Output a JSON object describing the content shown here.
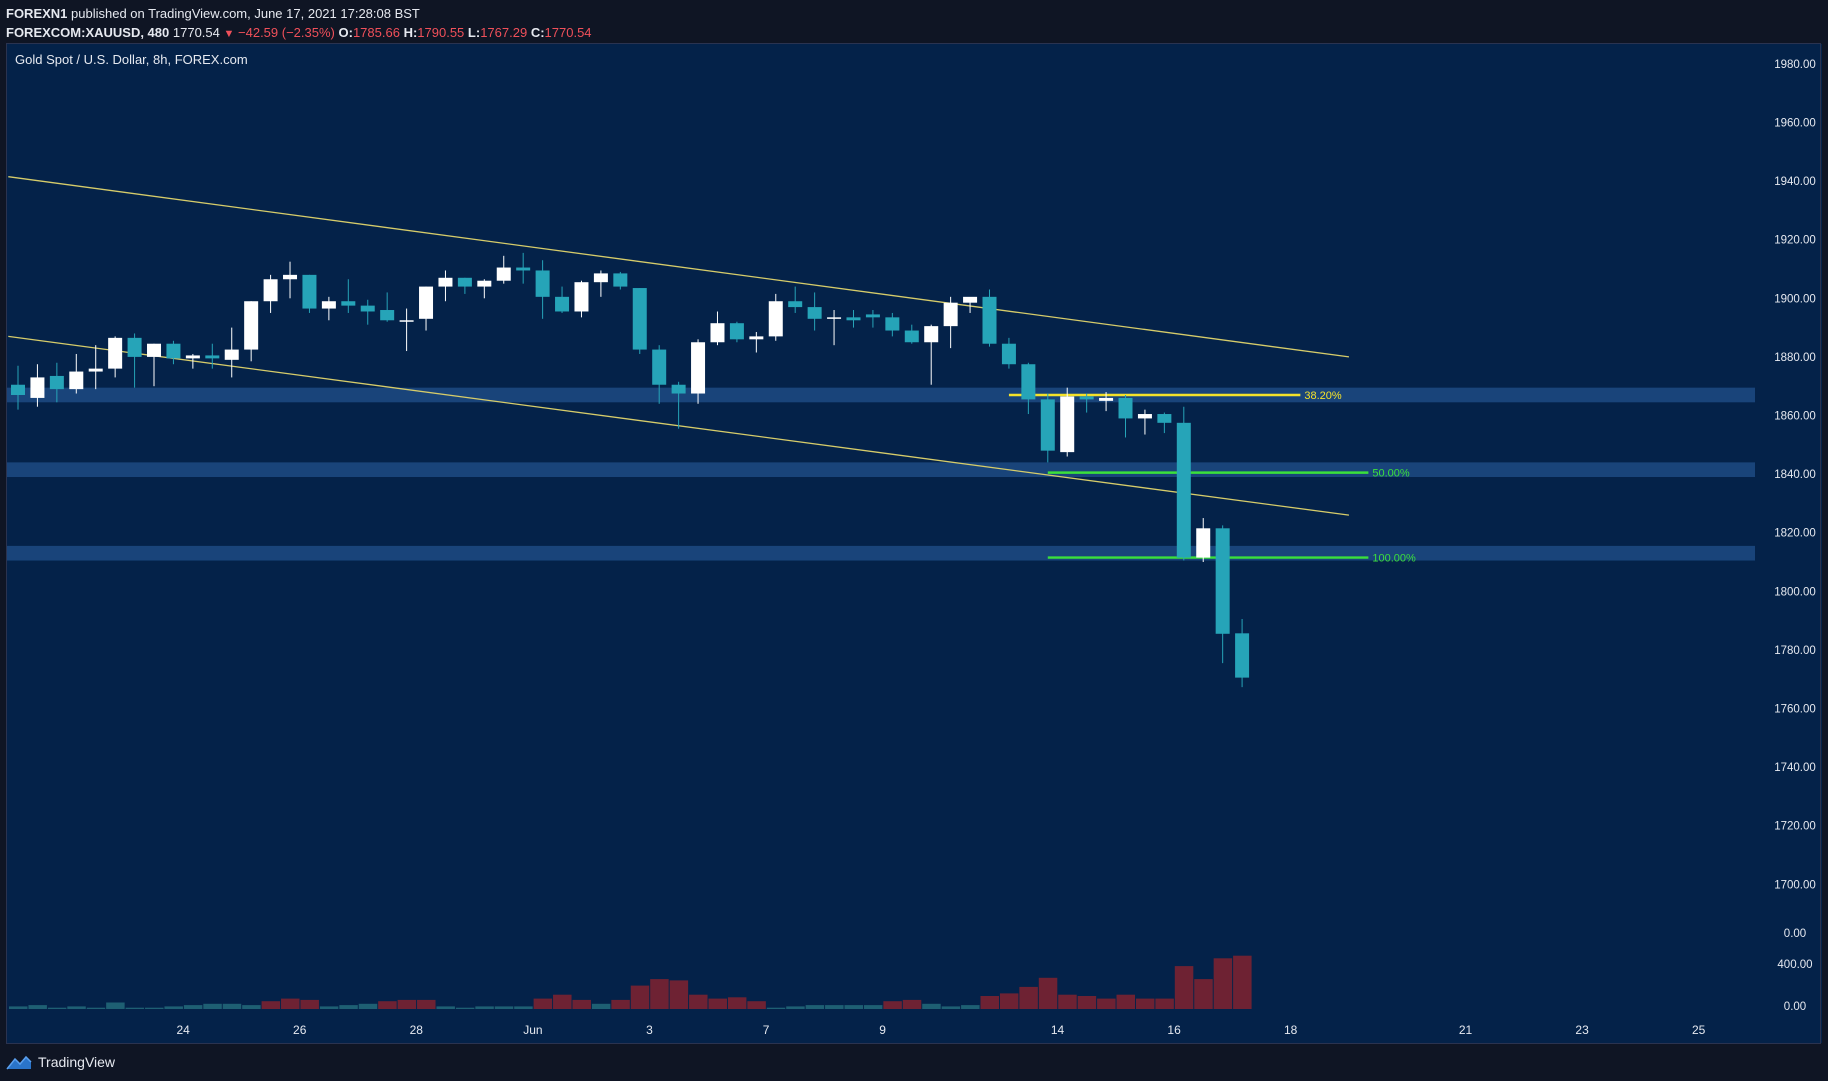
{
  "header": {
    "publisher": "FOREXN1",
    "published_text": "published on TradingView.com, June 17, 2021 17:28:08 BST",
    "symbol": "FOREXCOM:XAUUSD, 480",
    "last": "1770.54",
    "change": "−42.59 (−2.35%)",
    "o_label": "O:",
    "o_value": "1785.66",
    "h_label": "H:",
    "h_value": "1790.55",
    "l_label": "L:",
    "l_value": "1767.29",
    "c_label": "C:",
    "c_value": "1770.54"
  },
  "footer": {
    "brand": "TradingView"
  },
  "colors": {
    "background": "#042249",
    "bull": "#ffffff",
    "bear": "#26a4b8",
    "trendline": "#d6cc6a",
    "zone": "#1d4a82",
    "fib_382": "#f4e22a",
    "fib_50": "#3be03b",
    "volume": "#6e2233",
    "volume_teal": "#1e5f73"
  },
  "chart_data": {
    "type": "candlestick",
    "title": "Gold Spot / U.S. Dollar, 8h, FOREX.com",
    "price_axis_ticks": [
      "1980.00",
      "1960.00",
      "1940.00",
      "1920.00",
      "1900.00",
      "1880.00",
      "1860.00",
      "1840.00",
      "1820.00",
      "1800.00",
      "1780.00",
      "1760.00",
      "1740.00",
      "1720.00",
      "1700.00"
    ],
    "volume_axis_ticks": [
      "0.00",
      "400.00",
      "0.00"
    ],
    "ylim": [
      1690,
      1990
    ],
    "x_labels": [
      {
        "label": "24",
        "bar": 8.5
      },
      {
        "label": "26",
        "bar": 14.5
      },
      {
        "label": "28",
        "bar": 20.5
      },
      {
        "label": "Jun",
        "bar": 26.5
      },
      {
        "label": "3",
        "bar": 32.5
      },
      {
        "label": "7",
        "bar": 38.5
      },
      {
        "label": "9",
        "bar": 44.5
      },
      {
        "label": "14",
        "bar": 53.5
      },
      {
        "label": "16",
        "bar": 59.5
      },
      {
        "label": "18",
        "bar": 65.5
      },
      {
        "label": "21",
        "bar": 74.5
      },
      {
        "label": "23",
        "bar": 80.5
      },
      {
        "label": "25",
        "bar": 86.5
      }
    ],
    "candles": [
      {
        "o": 1870.5,
        "h": 1877.0,
        "l": 1862.0,
        "c": 1867.0
      },
      {
        "o": 1866.0,
        "h": 1877.5,
        "l": 1863.0,
        "c": 1873.0
      },
      {
        "o": 1873.5,
        "h": 1878.0,
        "l": 1864.5,
        "c": 1869.0
      },
      {
        "o": 1869.0,
        "h": 1881.0,
        "l": 1867.5,
        "c": 1875.0
      },
      {
        "o": 1875.0,
        "h": 1884.0,
        "l": 1869.0,
        "c": 1876.0
      },
      {
        "o": 1876.0,
        "h": 1887.0,
        "l": 1873.0,
        "c": 1886.5
      },
      {
        "o": 1886.5,
        "h": 1888.0,
        "l": 1869.5,
        "c": 1880.0
      },
      {
        "o": 1880.0,
        "h": 1884.5,
        "l": 1870.0,
        "c": 1884.5
      },
      {
        "o": 1884.5,
        "h": 1885.5,
        "l": 1877.5,
        "c": 1879.5
      },
      {
        "o": 1879.5,
        "h": 1881.0,
        "l": 1876.0,
        "c": 1880.5
      },
      {
        "o": 1880.5,
        "h": 1884.5,
        "l": 1876.0,
        "c": 1879.5
      },
      {
        "o": 1879.0,
        "h": 1890.0,
        "l": 1873.0,
        "c": 1882.5
      },
      {
        "o": 1882.5,
        "h": 1899.0,
        "l": 1878.5,
        "c": 1899.0
      },
      {
        "o": 1899.0,
        "h": 1908.0,
        "l": 1895.0,
        "c": 1906.5
      },
      {
        "o": 1906.5,
        "h": 1912.5,
        "l": 1900.0,
        "c": 1908.0
      },
      {
        "o": 1908.0,
        "h": 1908.0,
        "l": 1895.0,
        "c": 1896.5
      },
      {
        "o": 1896.5,
        "h": 1900.5,
        "l": 1892.5,
        "c": 1899.0
      },
      {
        "o": 1899.0,
        "h": 1906.5,
        "l": 1895.0,
        "c": 1897.5
      },
      {
        "o": 1897.5,
        "h": 1899.5,
        "l": 1891.0,
        "c": 1895.5
      },
      {
        "o": 1896.0,
        "h": 1902.0,
        "l": 1892.0,
        "c": 1892.5
      },
      {
        "o": 1892.5,
        "h": 1896.5,
        "l": 1882.0,
        "c": 1892.5
      },
      {
        "o": 1893.0,
        "h": 1904.0,
        "l": 1889.0,
        "c": 1904.0
      },
      {
        "o": 1904.0,
        "h": 1909.5,
        "l": 1899.0,
        "c": 1907.0
      },
      {
        "o": 1907.0,
        "h": 1907.0,
        "l": 1901.5,
        "c": 1904.0
      },
      {
        "o": 1904.0,
        "h": 1906.5,
        "l": 1900.0,
        "c": 1906.0
      },
      {
        "o": 1906.0,
        "h": 1914.5,
        "l": 1905.0,
        "c": 1910.5
      },
      {
        "o": 1910.5,
        "h": 1915.5,
        "l": 1905.0,
        "c": 1909.5
      },
      {
        "o": 1909.5,
        "h": 1913.0,
        "l": 1893.0,
        "c": 1900.5
      },
      {
        "o": 1900.5,
        "h": 1904.0,
        "l": 1895.0,
        "c": 1895.5
      },
      {
        "o": 1895.5,
        "h": 1906.0,
        "l": 1893.5,
        "c": 1905.5
      },
      {
        "o": 1905.5,
        "h": 1909.5,
        "l": 1900.5,
        "c": 1908.5
      },
      {
        "o": 1908.5,
        "h": 1909.0,
        "l": 1903.0,
        "c": 1904.0
      },
      {
        "o": 1903.5,
        "h": 1903.5,
        "l": 1881.0,
        "c": 1882.5
      },
      {
        "o": 1882.5,
        "h": 1884.0,
        "l": 1864.0,
        "c": 1870.5
      },
      {
        "o": 1870.5,
        "h": 1871.5,
        "l": 1855.5,
        "c": 1867.5
      },
      {
        "o": 1867.5,
        "h": 1886.0,
        "l": 1864.0,
        "c": 1885.0
      },
      {
        "o": 1885.0,
        "h": 1895.5,
        "l": 1884.0,
        "c": 1891.5
      },
      {
        "o": 1891.5,
        "h": 1892.0,
        "l": 1885.0,
        "c": 1886.0
      },
      {
        "o": 1886.0,
        "h": 1888.5,
        "l": 1881.5,
        "c": 1887.0
      },
      {
        "o": 1887.0,
        "h": 1901.5,
        "l": 1885.5,
        "c": 1899.0
      },
      {
        "o": 1899.0,
        "h": 1904.0,
        "l": 1895.0,
        "c": 1897.0
      },
      {
        "o": 1897.0,
        "h": 1902.0,
        "l": 1889.0,
        "c": 1893.0
      },
      {
        "o": 1893.0,
        "h": 1896.0,
        "l": 1884.0,
        "c": 1893.5
      },
      {
        "o": 1893.5,
        "h": 1896.0,
        "l": 1890.0,
        "c": 1892.5
      },
      {
        "o": 1894.5,
        "h": 1896.0,
        "l": 1890.0,
        "c": 1893.5
      },
      {
        "o": 1893.5,
        "h": 1895.0,
        "l": 1887.0,
        "c": 1889.0
      },
      {
        "o": 1889.0,
        "h": 1891.0,
        "l": 1884.5,
        "c": 1885.0
      },
      {
        "o": 1885.0,
        "h": 1891.0,
        "l": 1870.5,
        "c": 1890.5
      },
      {
        "o": 1890.5,
        "h": 1900.5,
        "l": 1883.0,
        "c": 1898.5
      },
      {
        "o": 1898.5,
        "h": 1900.0,
        "l": 1895.0,
        "c": 1900.5
      },
      {
        "o": 1900.5,
        "h": 1903.0,
        "l": 1883.5,
        "c": 1884.5
      },
      {
        "o": 1884.5,
        "h": 1886.5,
        "l": 1876.0,
        "c": 1877.5
      },
      {
        "o": 1877.5,
        "h": 1878.0,
        "l": 1860.5,
        "c": 1865.5
      },
      {
        "o": 1865.5,
        "h": 1867.5,
        "l": 1844.0,
        "c": 1848.0
      },
      {
        "o": 1847.5,
        "h": 1869.5,
        "l": 1846.0,
        "c": 1866.5
      },
      {
        "o": 1866.5,
        "h": 1867.5,
        "l": 1861.0,
        "c": 1865.5
      },
      {
        "o": 1865.0,
        "h": 1868.0,
        "l": 1861.5,
        "c": 1866.0
      },
      {
        "o": 1866.0,
        "h": 1867.0,
        "l": 1852.5,
        "c": 1859.0
      },
      {
        "o": 1859.0,
        "h": 1862.0,
        "l": 1853.5,
        "c": 1860.5
      },
      {
        "o": 1860.5,
        "h": 1861.0,
        "l": 1854.0,
        "c": 1857.5
      },
      {
        "o": 1857.5,
        "h": 1863.0,
        "l": 1810.5,
        "c": 1811.5
      },
      {
        "o": 1811.5,
        "h": 1825.0,
        "l": 1810.0,
        "c": 1821.5
      },
      {
        "o": 1821.5,
        "h": 1822.5,
        "l": 1775.5,
        "c": 1785.5
      },
      {
        "o": 1785.66,
        "h": 1790.55,
        "l": 1767.29,
        "c": 1770.54
      }
    ],
    "volume": [
      0.02,
      0.03,
      0.01,
      0.02,
      0.01,
      0.05,
      0.01,
      0.01,
      0.02,
      0.03,
      0.04,
      0.04,
      0.03,
      0.06,
      0.08,
      0.07,
      0.02,
      0.03,
      0.04,
      0.06,
      0.07,
      0.07,
      0.02,
      0.01,
      0.02,
      0.02,
      0.02,
      0.08,
      0.11,
      0.07,
      0.04,
      0.07,
      0.18,
      0.23,
      0.22,
      0.11,
      0.08,
      0.09,
      0.06,
      0.01,
      0.02,
      0.03,
      0.03,
      0.03,
      0.03,
      0.06,
      0.07,
      0.04,
      0.02,
      0.03,
      0.1,
      0.12,
      0.17,
      0.24,
      0.11,
      0.1,
      0.08,
      0.11,
      0.08,
      0.08,
      0.33,
      0.23,
      0.39,
      0.41
    ],
    "trendlines": [
      {
        "name": "channel-upper",
        "from": {
          "bar": -0.5,
          "price": 1941.5
        },
        "to": {
          "bar": 68.5,
          "price": 1880.0
        }
      },
      {
        "name": "channel-lower",
        "from": {
          "bar": -0.5,
          "price": 1887.0
        },
        "to": {
          "bar": 68.5,
          "price": 1826.0
        }
      }
    ],
    "zones": [
      {
        "name": "zone-1867",
        "from": 1864.5,
        "to": 1869.5
      },
      {
        "name": "zone-1842",
        "from": 1839.0,
        "to": 1844.0
      },
      {
        "name": "zone-1814",
        "from": 1810.5,
        "to": 1815.5
      }
    ],
    "fib_levels": [
      {
        "label": "38.20%",
        "price": 1867.0,
        "from_bar": 51.0,
        "to_bar": 66.0,
        "color": "#f4e22a"
      },
      {
        "label": "50.00%",
        "price": 1840.5,
        "from_bar": 53.0,
        "to_bar": 69.5,
        "color": "#3be03b"
      },
      {
        "label": "100.00%",
        "price": 1811.5,
        "from_bar": 53.0,
        "to_bar": 69.5,
        "color": "#3be03b"
      }
    ]
  }
}
